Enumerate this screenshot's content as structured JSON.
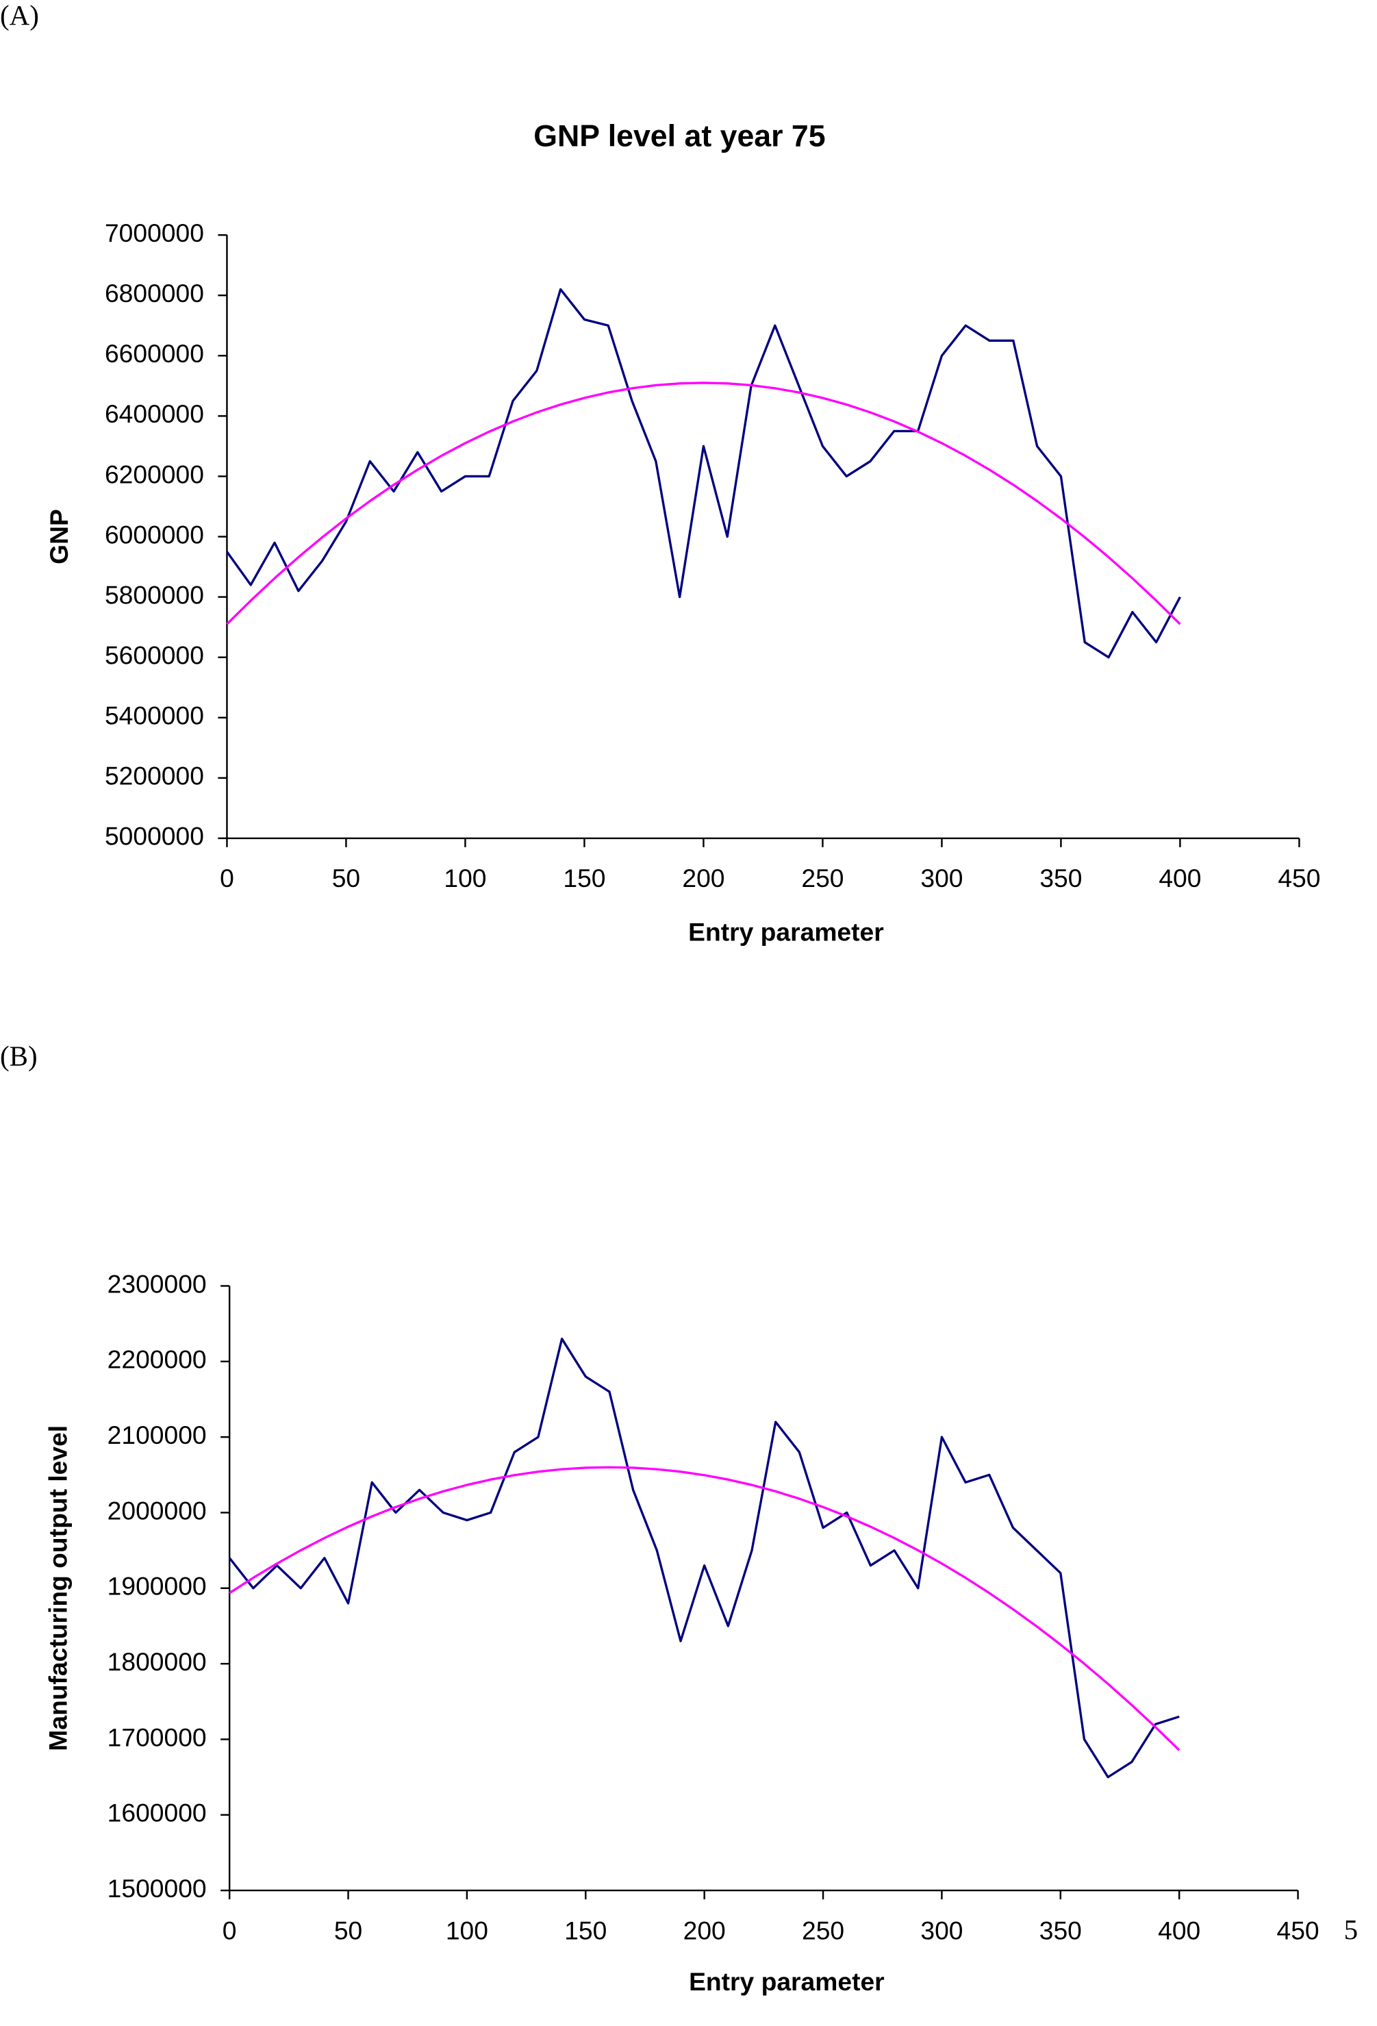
{
  "panel_labels": [
    "(A)",
    "(B)"
  ],
  "page_number": "5",
  "chart_data": [
    {
      "type": "line",
      "title": "GNP level at year 75",
      "xlabel": "Entry parameter",
      "ylabel": "GNP",
      "x": [
        0,
        10,
        20,
        30,
        40,
        50,
        60,
        70,
        80,
        90,
        100,
        110,
        120,
        130,
        140,
        150,
        160,
        170,
        180,
        190,
        200,
        210,
        220,
        230,
        240,
        250,
        260,
        270,
        280,
        290,
        300,
        310,
        320,
        330,
        340,
        350,
        360,
        370,
        380,
        390,
        400
      ],
      "series": [
        {
          "color": "#000080",
          "values": [
            5950000,
            5840000,
            5980000,
            5820000,
            5920000,
            6050000,
            6250000,
            6150000,
            6280000,
            6150000,
            6200000,
            6200000,
            6450000,
            6550000,
            6820000,
            6720000,
            6700000,
            6450000,
            6250000,
            5800000,
            6300000,
            6000000,
            6500000,
            6700000,
            6500000,
            6300000,
            6200000,
            6250000,
            6350000,
            6350000,
            6600000,
            6700000,
            6650000,
            6650000,
            6300000,
            6200000,
            5650000,
            5600000,
            5750000,
            5650000,
            5800000
          ]
        },
        {
          "color": "#ff00ff",
          "values": [
            5710000,
            5788000,
            5862000,
            5932000,
            5998000,
            6060000,
            6118000,
            6172000,
            6222000,
            6268000,
            6310000,
            6348000,
            6382000,
            6412000,
            6438000,
            6460000,
            6478000,
            6492000,
            6502000,
            6508000,
            6510000,
            6508000,
            6502000,
            6492000,
            6478000,
            6460000,
            6438000,
            6412000,
            6382000,
            6348000,
            6310000,
            6268000,
            6222000,
            6172000,
            6118000,
            6060000,
            5998000,
            5932000,
            5862000,
            5788000,
            5710000
          ]
        }
      ],
      "xlim": [
        0,
        450
      ],
      "xticks": [
        0,
        50,
        100,
        150,
        200,
        250,
        300,
        350,
        400,
        450
      ],
      "ylim": [
        5000000,
        7000000
      ],
      "yticks": [
        5000000,
        5200000,
        5400000,
        5600000,
        5800000,
        6000000,
        6200000,
        6400000,
        6600000,
        6800000,
        7000000
      ],
      "grid": false
    },
    {
      "type": "line",
      "xlabel": "Entry parameter",
      "ylabel": "Manufacturing output level",
      "x": [
        0,
        10,
        20,
        30,
        40,
        50,
        60,
        70,
        80,
        90,
        100,
        110,
        120,
        130,
        140,
        150,
        160,
        170,
        180,
        190,
        200,
        210,
        220,
        230,
        240,
        250,
        260,
        270,
        280,
        290,
        300,
        310,
        320,
        330,
        340,
        350,
        360,
        370,
        380,
        390,
        400
      ],
      "series": [
        {
          "color": "#000080",
          "values": [
            1940000,
            1900000,
            1930000,
            1900000,
            1940000,
            1880000,
            2040000,
            2000000,
            2030000,
            2000000,
            1990000,
            2000000,
            2080000,
            2100000,
            2230000,
            2180000,
            2160000,
            2030000,
            1950000,
            1830000,
            1930000,
            1850000,
            1950000,
            2120000,
            2080000,
            1980000,
            2000000,
            1930000,
            1950000,
            1900000,
            2100000,
            2040000,
            2050000,
            1980000,
            1950000,
            1920000,
            1700000,
            1650000,
            1670000,
            1720000,
            1730000
          ]
        },
        {
          "color": "#ff00ff",
          "values": [
            1893600,
            1913750,
            1932600,
            1950150,
            1966400,
            1981350,
            1995000,
            2007350,
            2018400,
            2028150,
            2036600,
            2043750,
            2049600,
            2054150,
            2057400,
            2059350,
            2060000,
            2059350,
            2057400,
            2054150,
            2049600,
            2043750,
            2036600,
            2028150,
            2018400,
            2007350,
            1995000,
            1981350,
            1966400,
            1950150,
            1932600,
            1913750,
            1893600,
            1872150,
            1849400,
            1825350,
            1800000,
            1773350,
            1745400,
            1716150,
            1685600
          ]
        }
      ],
      "xlim": [
        0,
        450
      ],
      "xticks": [
        0,
        50,
        100,
        150,
        200,
        250,
        300,
        350,
        400,
        450
      ],
      "ylim": [
        1500000,
        2300000
      ],
      "yticks": [
        1500000,
        1600000,
        1700000,
        1800000,
        1900000,
        2000000,
        2100000,
        2200000,
        2300000
      ],
      "grid": false
    }
  ]
}
